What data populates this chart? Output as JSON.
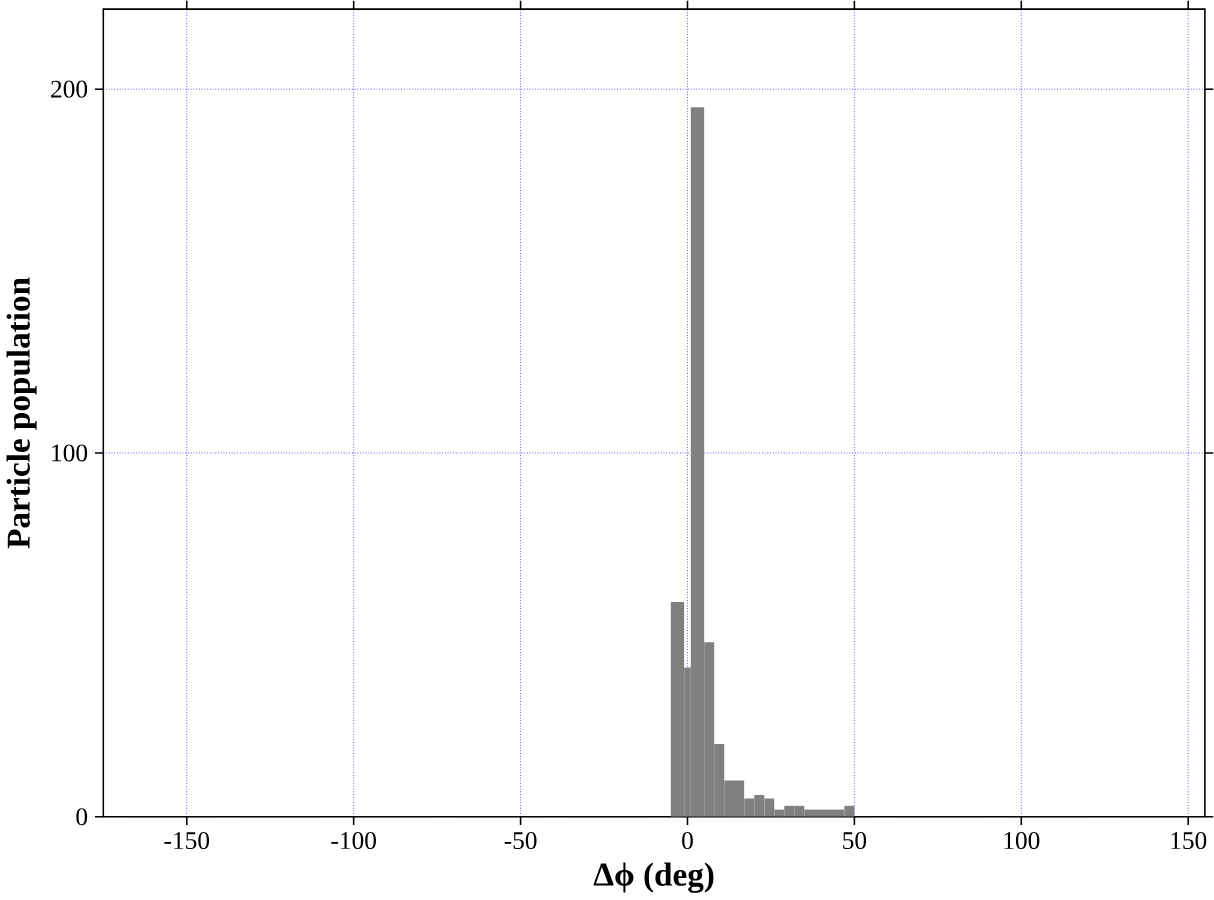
{
  "chart_data": {
    "type": "histogram",
    "xlabel": "Δϕ (deg)",
    "ylabel": "Particle population",
    "bins": [
      -5,
      -1,
      1,
      5,
      8,
      11,
      17,
      20,
      23,
      26,
      29,
      32,
      35,
      47,
      50
    ],
    "values": [
      59,
      41,
      195,
      48,
      20,
      10,
      5,
      6,
      5,
      2,
      3,
      3,
      2,
      3
    ],
    "color": "#808080",
    "xlim": [
      -175,
      155
    ],
    "ylim": [
      0,
      222
    ],
    "xticks": [
      -150,
      -100,
      -50,
      0,
      50,
      100,
      150
    ],
    "yticks": [
      0,
      100,
      200
    ],
    "grid": true
  }
}
